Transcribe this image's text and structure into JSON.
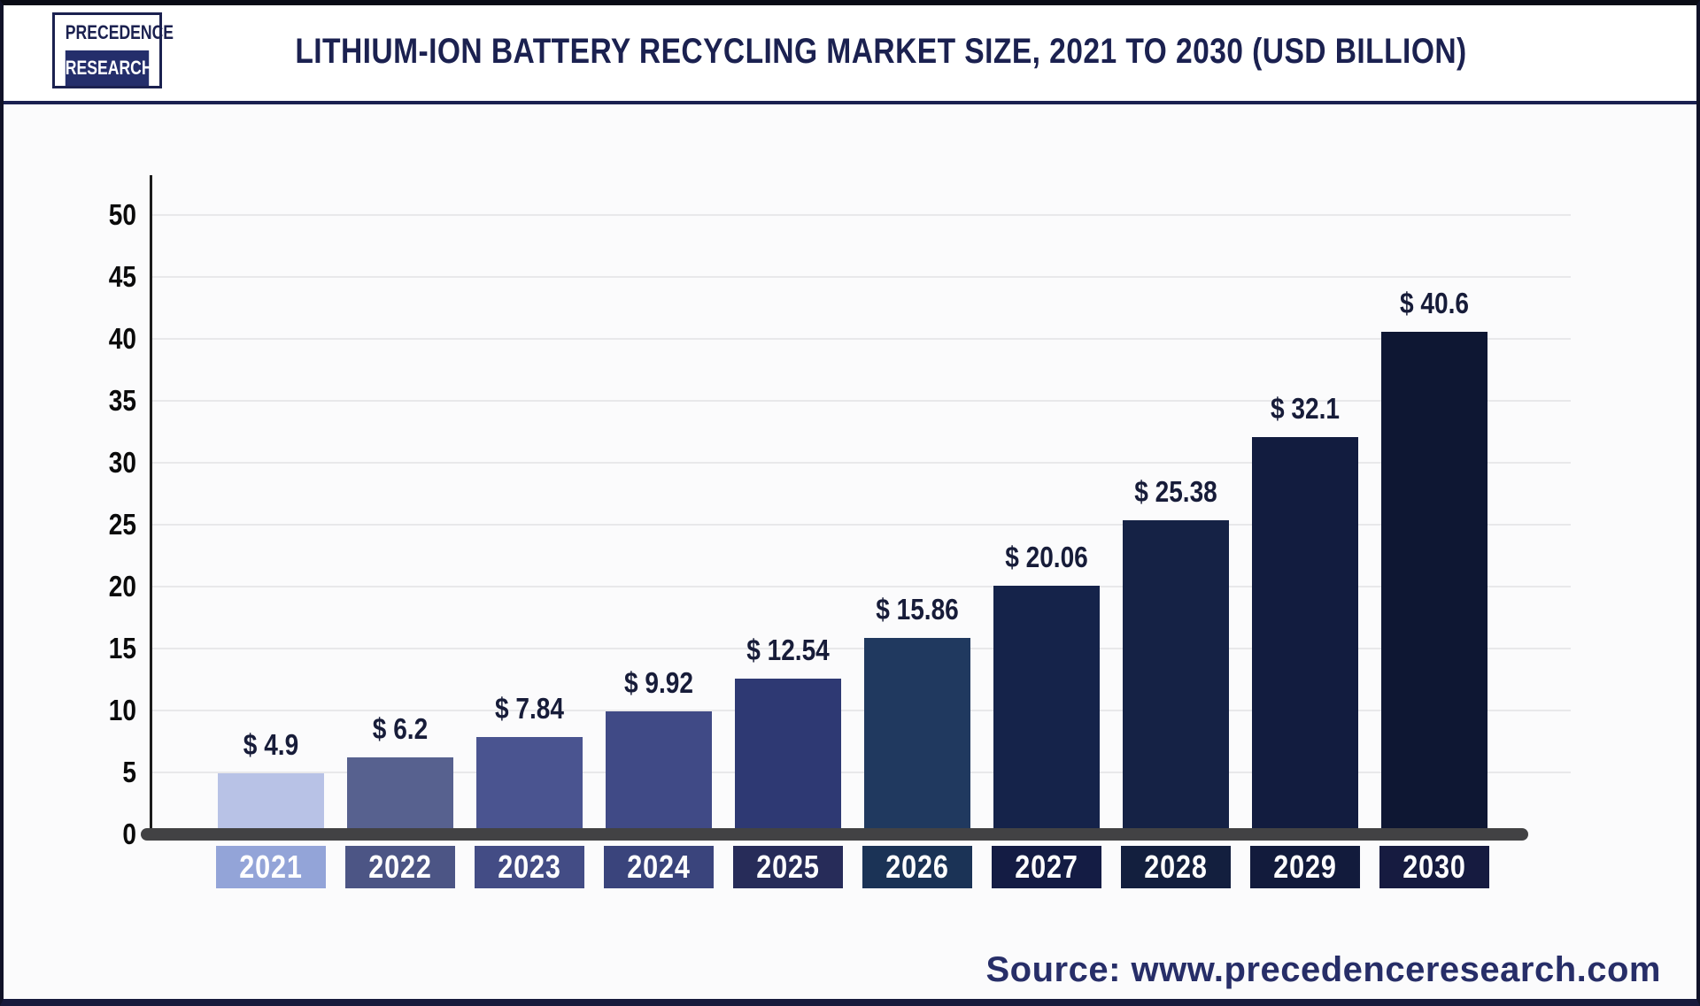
{
  "header": {
    "title": "LITHIUM-ION BATTERY RECYCLING MARKET SIZE, 2021 TO 2030 (USD BILLION)"
  },
  "logo": {
    "line1": "PRECEDENCE",
    "line2": "RESEARCH"
  },
  "footer": {
    "source": "Source: www.precedenceresearch.com"
  },
  "chart_data": {
    "type": "bar",
    "title": "Lithium-ion Battery Recycling Market Size, 2021 to 2030 (USD Billion)",
    "unit": "USD Billion",
    "categories": [
      "2021",
      "2022",
      "2023",
      "2024",
      "2025",
      "2026",
      "2027",
      "2028",
      "2029",
      "2030"
    ],
    "values": [
      4.9,
      6.2,
      7.84,
      9.92,
      12.54,
      15.86,
      20.06,
      25.38,
      32.1,
      40.6
    ],
    "value_labels": [
      "$ 4.9",
      "$ 6.2",
      "$ 7.84",
      "$ 9.92",
      "$ 12.54",
      "$ 15.86",
      "$ 20.06",
      "$ 25.38",
      "$ 32.1",
      "$ 40.6"
    ],
    "ylim": [
      0,
      50
    ],
    "y_ticks": [
      0,
      5,
      10,
      15,
      20,
      25,
      30,
      35,
      40,
      45,
      50
    ],
    "grid": "horizontal",
    "legend": "none",
    "bar_colors": [
      "#b8c2e6",
      "#57618f",
      "#4a5490",
      "#404a86",
      "#2e3973",
      "#20395f",
      "#15234a",
      "#152245",
      "#121c3f",
      "#0e1733"
    ],
    "category_box_colors": [
      "#93a4d8",
      "#4c5585",
      "#434c85",
      "#3a447c",
      "#272c59",
      "#1b3356",
      "#141c44",
      "#131f3e",
      "#121b3c",
      "#161b40"
    ],
    "colors": {
      "accent_navy": "#1b2150",
      "axis_line": "#1c1c1c",
      "baseline": "#424244",
      "gridline": "#e8e8ea",
      "value_label_text": "#171c39",
      "source_text": "#272e68"
    }
  }
}
